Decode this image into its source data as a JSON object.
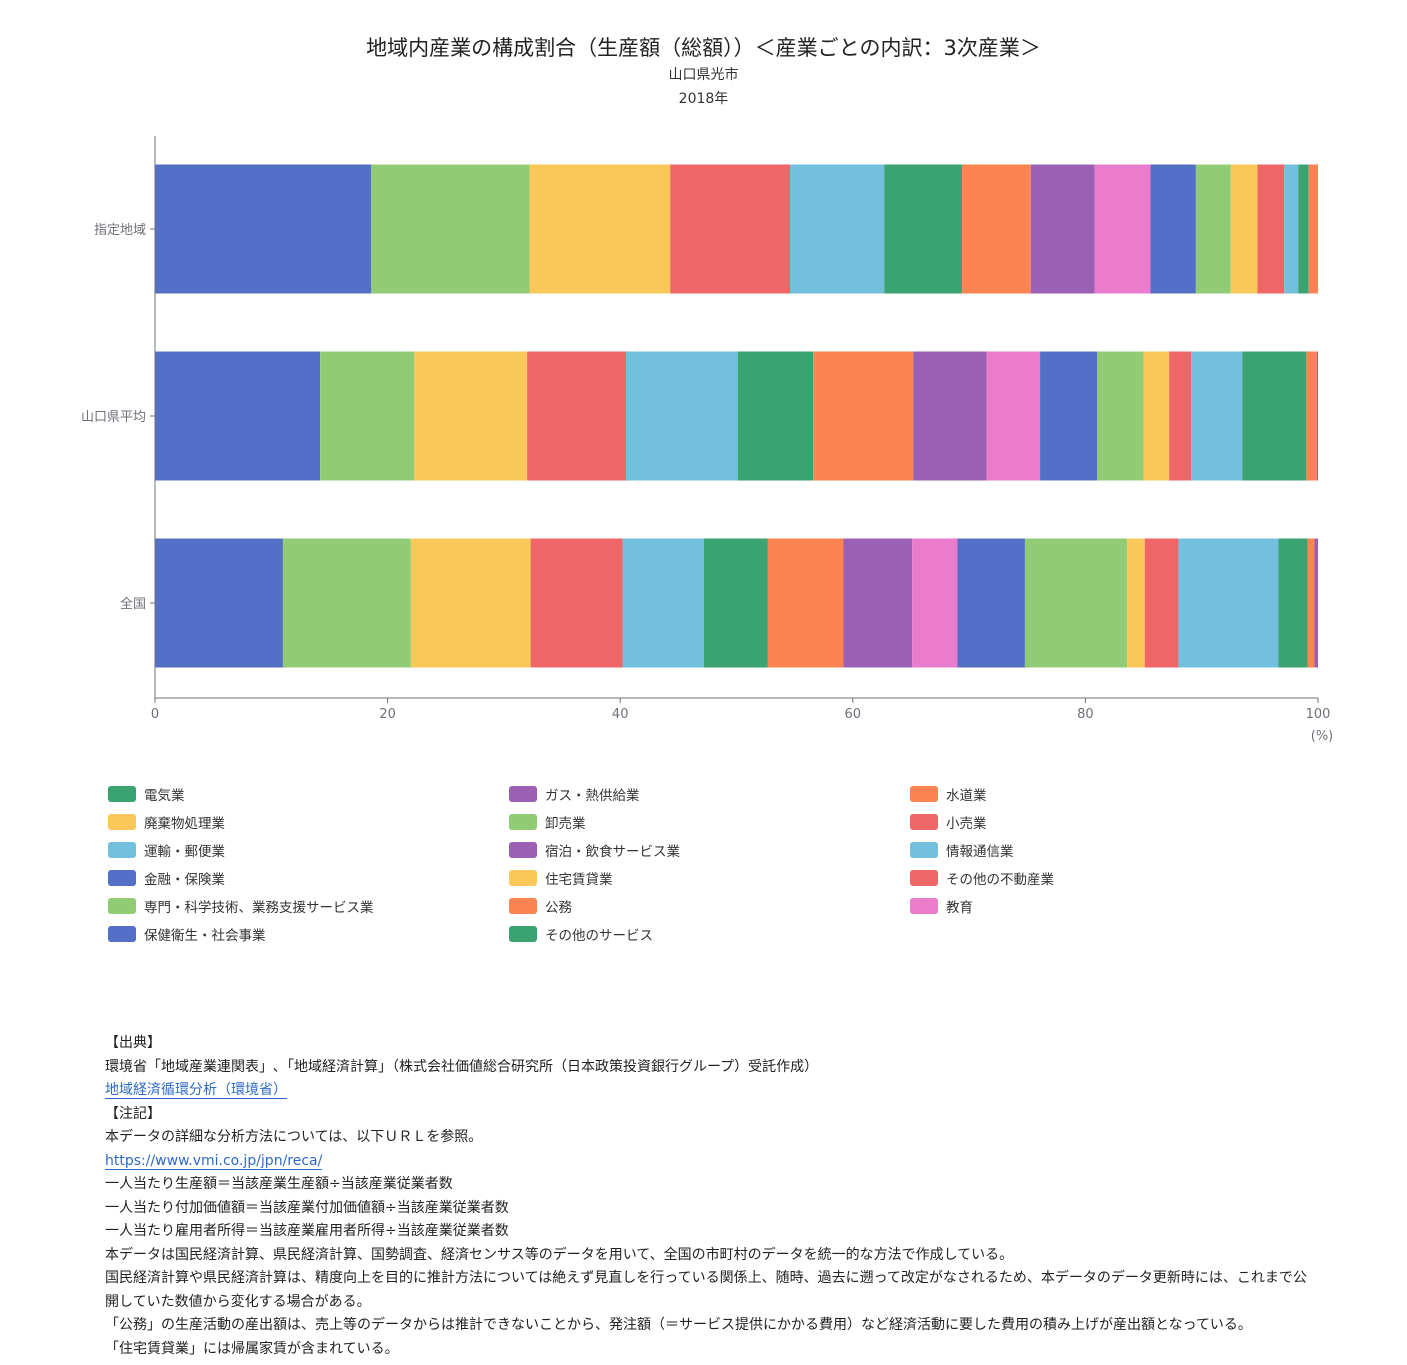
{
  "header": {
    "title": "地域内産業の構成割合（生産額（総額））＜産業ごとの内訳：3次産業＞",
    "region": "山口県光市",
    "year": "2018年"
  },
  "chart_data": {
    "type": "bar",
    "orientation": "horizontal",
    "stacked": true,
    "categories": [
      "指定地域",
      "山口県平均",
      "全国"
    ],
    "x_ticks": [
      "0",
      "20",
      "40",
      "60",
      "80",
      "100"
    ],
    "x_unit": "(%)",
    "xlim": [
      0,
      100
    ],
    "series": [
      {
        "name": "金融・保険業",
        "color": "#5470c6",
        "values": [
          18.6,
          14.2,
          11.0
        ]
      },
      {
        "name": "専門・科学技術、業務支援サービス業",
        "color": "#91cc75",
        "values": [
          13.6,
          8.1,
          11.0
        ]
      },
      {
        "name": "住宅賃貸業",
        "color": "#fac858",
        "values": [
          12.1,
          9.7,
          10.3
        ]
      },
      {
        "name": "小売業",
        "color": "#ee6666",
        "values": [
          10.3,
          8.5,
          7.9
        ]
      },
      {
        "name": "情報通信業",
        "color": "#73c0de",
        "values": [
          8.1,
          9.6,
          7.0
        ]
      },
      {
        "name": "その他のサービス",
        "color": "#3ba272",
        "values": [
          6.7,
          6.5,
          5.5
        ]
      },
      {
        "name": "公務",
        "color": "#fc8452",
        "values": [
          5.9,
          8.6,
          6.5
        ]
      },
      {
        "name": "宿泊・飲食サービス業",
        "color": "#9a60b4",
        "values": [
          5.5,
          6.3,
          5.9
        ]
      },
      {
        "name": "教育",
        "color": "#ea7ccc",
        "values": [
          4.8,
          4.6,
          3.9
        ]
      },
      {
        "name": "保健衛生・社会事業",
        "color": "#5470c6",
        "values": [
          3.9,
          4.9,
          5.8
        ]
      },
      {
        "name": "卸売業",
        "color": "#91cc75",
        "values": [
          3.0,
          4.0,
          8.8
        ]
      },
      {
        "name": "廃棄物処理業",
        "color": "#fac858",
        "values": [
          2.3,
          2.2,
          1.5
        ]
      },
      {
        "name": "その他の不動産業",
        "color": "#ee6666",
        "values": [
          2.3,
          1.9,
          2.9
        ]
      },
      {
        "name": "運輸・郵便業",
        "color": "#73c0de",
        "values": [
          1.2,
          4.4,
          8.6
        ]
      },
      {
        "name": "電気業",
        "color": "#3ba272",
        "values": [
          0.9,
          5.5,
          2.5
        ]
      },
      {
        "name": "水道業",
        "color": "#fc8452",
        "values": [
          0.8,
          0.9,
          0.6
        ]
      },
      {
        "name": "ガス・熱供給業",
        "color": "#9a60b4",
        "values": [
          0.0,
          0.1,
          0.3
        ]
      }
    ],
    "legend": [
      {
        "name": "電気業",
        "color": "#3ba272"
      },
      {
        "name": "ガス・熱供給業",
        "color": "#9a60b4"
      },
      {
        "name": "水道業",
        "color": "#fc8452"
      },
      {
        "name": "廃棄物処理業",
        "color": "#fac858"
      },
      {
        "name": "卸売業",
        "color": "#91cc75"
      },
      {
        "name": "小売業",
        "color": "#ee6666"
      },
      {
        "name": "運輸・郵便業",
        "color": "#73c0de"
      },
      {
        "name": "宿泊・飲食サービス業",
        "color": "#9a60b4"
      },
      {
        "name": "情報通信業",
        "color": "#73c0de"
      },
      {
        "name": "金融・保険業",
        "color": "#5470c6"
      },
      {
        "name": "住宅賃貸業",
        "color": "#fac858"
      },
      {
        "name": "その他の不動産業",
        "color": "#ee6666"
      },
      {
        "name": "専門・科学技術、業務支援サービス業",
        "color": "#91cc75"
      },
      {
        "name": "公務",
        "color": "#fc8452"
      },
      {
        "name": "教育",
        "color": "#ea7ccc"
      },
      {
        "name": "保健衛生・社会事業",
        "color": "#5470c6"
      },
      {
        "name": "その他のサービス",
        "color": "#3ba272"
      }
    ],
    "legend_placement": "bottom"
  },
  "notes": {
    "source_heading": "【出典】",
    "source_text": "環境省「地域産業連関表」､「地域経済計算」（株式会社価値総合研究所（日本政策投資銀行グループ）受託作成）",
    "source_link": "地域経済循環分析（環境省）",
    "notes_heading": "【注記】",
    "line1": "本データの詳細な分析方法については、以下ＵＲＬを参照。",
    "url": "https://www.vmi.co.jp/jpn/reca/",
    "line2": "一人当たり生産額＝当該産業生産額÷当該産業従業者数",
    "line3": "一人当たり付加価値額＝当該産業付加価値額÷当該産業従業者数",
    "line4": "一人当たり雇用者所得＝当該産業雇用者所得÷当該産業従業者数",
    "line5": "本データは国民経済計算、県民経済計算、国勢調査、経済センサス等のデータを用いて、全国の市町村のデータを統一的な方法で作成している。",
    "line6": "国民経済計算や県民経済計算は、精度向上を目的に推計方法については絶えず見直しを行っている関係上、随時、過去に遡って改定がなされるため、本データのデータ更新時には、これまで公開していた数値から変化する場合がある。",
    "line7": "「公務」の生産活動の産出額は、売上等のデータからは推計できないことから、発注額（＝サービス提供にかかる費用）など経済活動に要した費用の積み上げが産出額となっている。",
    "line8": "「住宅賃貸業」には帰属家賃が含まれている。"
  }
}
